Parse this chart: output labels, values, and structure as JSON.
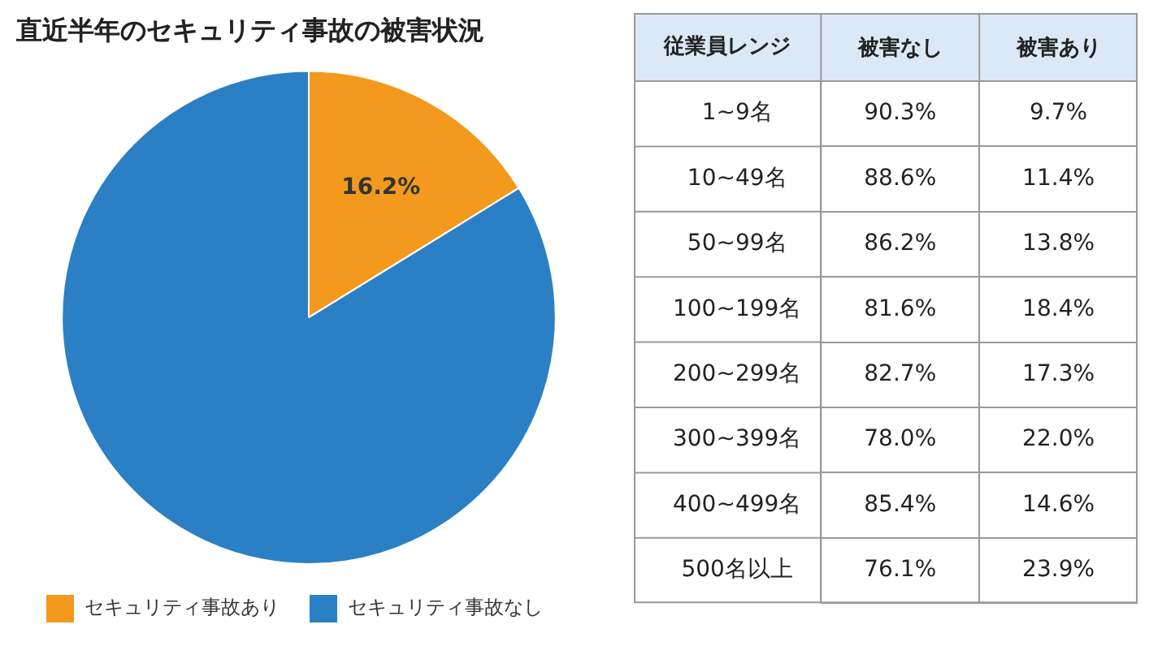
{
  "chart_data": [
    {
      "type": "pie",
      "title": "直近半年のセキュリティ事故の被害状況",
      "categories": [
        "セキュリティ事故あり",
        "セキュリティ事故なし"
      ],
      "values": [
        16.2,
        83.8
      ],
      "colors": [
        "#f39a1e",
        "#2b80c5"
      ],
      "value_labels": [
        "16.2%",
        null
      ],
      "legend": "bottom"
    },
    {
      "type": "heatmap",
      "ylabel": "従業員レンジ",
      "categories": [
        "被害なし",
        "被害あり"
      ],
      "y_categories": [
        "1~9名",
        "10~49名",
        "50~99名",
        "100~199名",
        "200~299名",
        "300~399名",
        "400~499名",
        "500名以上"
      ],
      "cells": [
        [
          90.3,
          9.7
        ],
        [
          88.6,
          11.4
        ],
        [
          86.2,
          13.8
        ],
        [
          81.6,
          18.4
        ],
        [
          82.7,
          17.3
        ],
        [
          78.0,
          22.0
        ],
        [
          85.4,
          14.6
        ],
        [
          76.1,
          23.9
        ]
      ],
      "cell_labels": [
        [
          "90.3%",
          "9.7%"
        ],
        [
          "88.6%",
          "11.4%"
        ],
        [
          "86.2%",
          "13.8%"
        ],
        [
          "81.6%",
          "18.4%"
        ],
        [
          "82.7%",
          "17.3%"
        ],
        [
          "78.0%",
          "22.0%"
        ],
        [
          "85.4%",
          "14.6%"
        ],
        [
          "76.1%",
          "23.9%"
        ]
      ]
    }
  ]
}
